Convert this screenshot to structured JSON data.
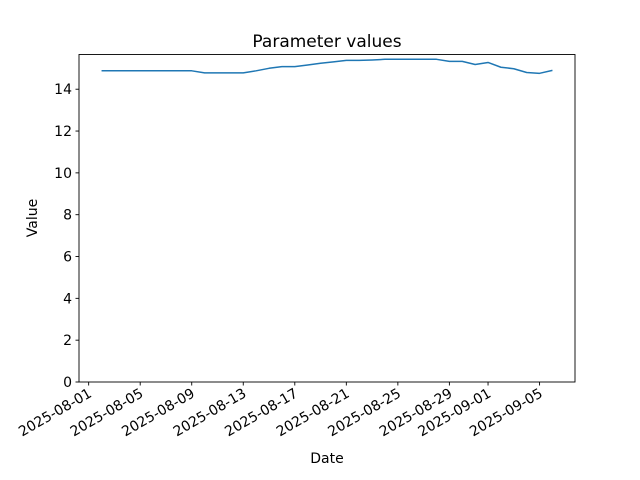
{
  "figure": {
    "background": "#ffffff"
  },
  "chart_data": {
    "type": "line",
    "title": "Parameter values",
    "xlabel": "Date",
    "ylabel": "Value",
    "grid": false,
    "legend": "none",
    "axis_color": "#000000",
    "ylim": [
      0,
      15.66
    ],
    "y_ticks": [
      0,
      2,
      4,
      6,
      8,
      10,
      12,
      14
    ],
    "x_margin_days": 1.75,
    "x_tick_rotation_deg": 30,
    "x_tick_labels": [
      "2025-08-01",
      "2025-08-05",
      "2025-08-09",
      "2025-08-13",
      "2025-08-17",
      "2025-08-21",
      "2025-08-25",
      "2025-08-29",
      "2025-09-01",
      "2025-09-05"
    ],
    "series": [
      {
        "name": "parameter-values",
        "color": "#1f77b4",
        "line_width": 1.5,
        "x": [
          "2025-08-02",
          "2025-08-03",
          "2025-08-04",
          "2025-08-05",
          "2025-08-06",
          "2025-08-07",
          "2025-08-08",
          "2025-08-09",
          "2025-08-10",
          "2025-08-11",
          "2025-08-12",
          "2025-08-13",
          "2025-08-14",
          "2025-08-15",
          "2025-08-16",
          "2025-08-17",
          "2025-08-18",
          "2025-08-19",
          "2025-08-20",
          "2025-08-21",
          "2025-08-22",
          "2025-08-23",
          "2025-08-24",
          "2025-08-25",
          "2025-08-26",
          "2025-08-27",
          "2025-08-28",
          "2025-08-29",
          "2025-08-30",
          "2025-08-31",
          "2025-09-01",
          "2025-09-02",
          "2025-09-03",
          "2025-09-04",
          "2025-09-05",
          "2025-09-06"
        ],
        "values": [
          14.88,
          14.88,
          14.88,
          14.88,
          14.88,
          14.88,
          14.88,
          14.88,
          14.78,
          14.78,
          14.78,
          14.78,
          14.88,
          15.0,
          15.08,
          15.08,
          15.16,
          15.24,
          15.31,
          15.38,
          15.38,
          15.4,
          15.43,
          15.43,
          15.43,
          15.43,
          15.43,
          15.33,
          15.33,
          15.18,
          15.28,
          15.05,
          14.98,
          14.8,
          14.76,
          14.9
        ]
      }
    ]
  }
}
